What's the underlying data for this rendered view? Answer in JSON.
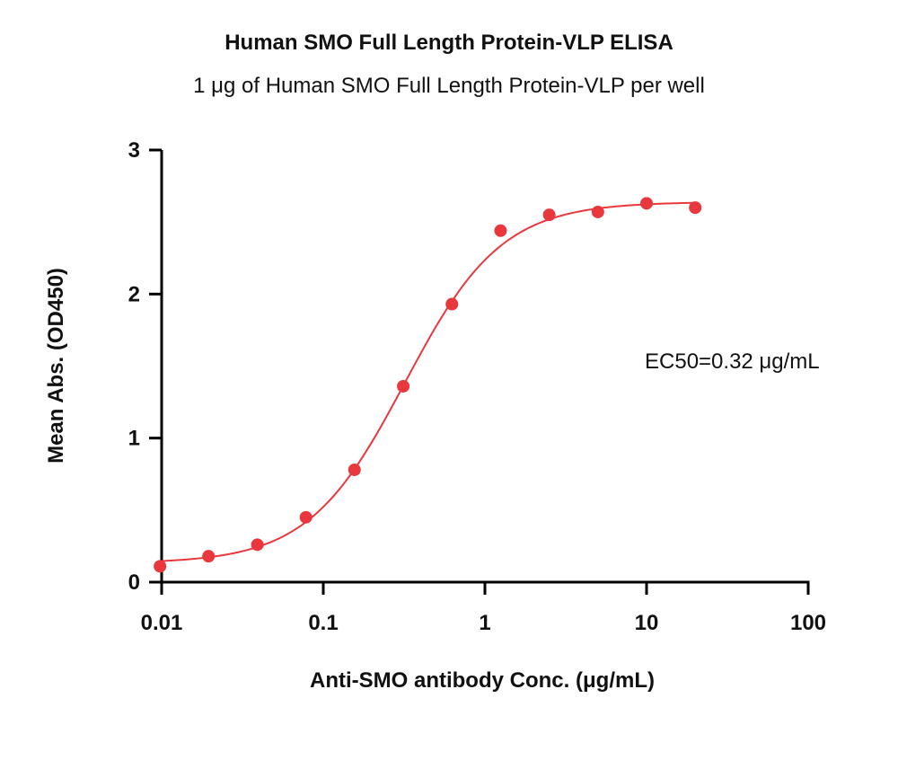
{
  "chart_data": {
    "type": "scatter",
    "title": "Human SMO Full Length Protein-VLP ELISA",
    "subtitle": "1 μg of Human SMO Full Length Protein-VLP per well",
    "xlabel": "Anti-SMO antibody Conc. (μg/mL)",
    "ylabel": "Mean Abs. (OD450)",
    "x_scale": "log",
    "xlim": [
      0.01,
      100
    ],
    "ylim": [
      0,
      3
    ],
    "x_ticks": [
      0.01,
      0.1,
      1,
      10,
      100
    ],
    "x_tick_labels": [
      "0.01",
      "0.1",
      "1",
      "10",
      "100"
    ],
    "y_ticks": [
      0,
      1,
      2,
      3
    ],
    "y_tick_labels": [
      "0",
      "1",
      "2",
      "3"
    ],
    "series": [
      {
        "x": [
          0.00977,
          0.0195,
          0.0391,
          0.0781,
          0.156,
          0.3125,
          0.625,
          1.25,
          2.5,
          5,
          10,
          20
        ],
        "y": [
          0.11,
          0.18,
          0.26,
          0.45,
          0.78,
          1.36,
          1.93,
          2.44,
          2.55,
          2.57,
          2.63,
          2.6
        ],
        "color": "#e8383d"
      }
    ],
    "fit_curve": {
      "type": "4PL",
      "bottom": 0.13,
      "top": 2.64,
      "ec50": 0.32,
      "hill": 1.45,
      "color": "#e8383d"
    },
    "annotation": "EC50=0.32 μg/mL",
    "grid": false,
    "legend": "none"
  }
}
